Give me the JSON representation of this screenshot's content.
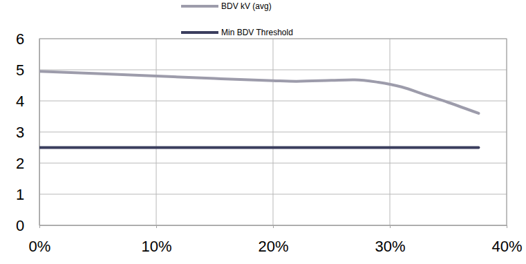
{
  "chart_data": {
    "type": "line",
    "x": [
      0,
      5,
      10,
      15,
      20,
      22,
      25,
      27,
      29,
      31,
      33,
      35,
      37.6
    ],
    "series": [
      {
        "name": "BDV kV (avg)",
        "color": "#9d9cab",
        "values": [
          4.95,
          4.88,
          4.8,
          4.72,
          4.65,
          4.63,
          4.66,
          4.68,
          4.6,
          4.45,
          4.2,
          3.95,
          3.6
        ]
      },
      {
        "name": "Min BDV Threshold",
        "color": "#3b3e5e",
        "values": [
          2.5,
          2.5,
          2.5,
          2.5,
          2.5,
          2.5,
          2.5,
          2.5,
          2.5,
          2.5,
          2.5,
          2.5,
          2.5
        ]
      }
    ],
    "xlim": [
      0,
      40
    ],
    "xticks": [
      {
        "value": 0,
        "label": "0%"
      },
      {
        "value": 10,
        "label": "10%"
      },
      {
        "value": 20,
        "label": "20%"
      },
      {
        "value": 30,
        "label": "30%"
      },
      {
        "value": 40,
        "label": "40%"
      }
    ],
    "ylim": [
      0,
      6
    ],
    "yticks": [
      0,
      1,
      2,
      3,
      4,
      5,
      6
    ],
    "grid": true,
    "legend": "top"
  }
}
